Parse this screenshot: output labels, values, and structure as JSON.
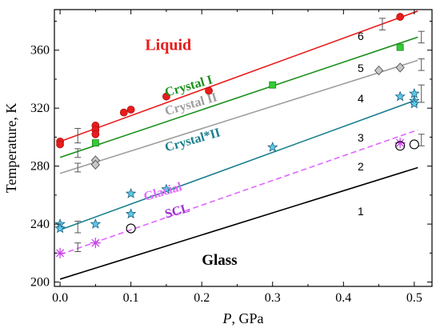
{
  "chart_data": {
    "type": "scatter",
    "xlabel": "P, GPa",
    "xlabel_var": "P",
    "xlabel_unit": ", GPa",
    "ylabel": "Temperature, K",
    "xlim": [
      -0.008,
      0.525
    ],
    "ylim": [
      197,
      388
    ],
    "x_ticks": [
      0.0,
      0.1,
      0.2,
      0.3,
      0.4,
      0.5
    ],
    "x_tick_labels": [
      "0.0",
      "0.1",
      "0.2",
      "0.3",
      "0.4",
      "0.5"
    ],
    "y_ticks": [
      200,
      240,
      280,
      320,
      360
    ],
    "y_tick_labels": [
      "200",
      "240",
      "280",
      "320",
      "360"
    ],
    "grid": false,
    "lines": [
      {
        "label": "1",
        "style": "solid",
        "color": "#000000",
        "x": [
          0.0,
          0.505
        ],
        "y": [
          202,
          279
        ],
        "label_at": [
          0.42,
          246
        ]
      },
      {
        "label": "2",
        "style": "dashed",
        "color": "#e066ff",
        "x": [
          0.0,
          0.505
        ],
        "y": [
          219,
          305
        ],
        "label_at": [
          0.42,
          277
        ]
      },
      {
        "label": "3",
        "style": "solid",
        "color": "#1a7f8f",
        "x": [
          0.0,
          0.505
        ],
        "y": [
          236,
          326
        ],
        "label_at": [
          0.42,
          297
        ]
      },
      {
        "label": "4",
        "style": "solid",
        "color": "#9e9e9e",
        "x": [
          0.0,
          0.505
        ],
        "y": [
          275,
          353
        ],
        "label_at": [
          0.42,
          324
        ]
      },
      {
        "label": "5",
        "style": "solid",
        "color": "#1a8f1a",
        "x": [
          0.0,
          0.505
        ],
        "y": [
          286,
          369
        ],
        "label_at": [
          0.42,
          345
        ]
      },
      {
        "label": "6",
        "style": "solid",
        "color": "#e81c1c",
        "x": [
          0.0,
          0.505
        ],
        "y": [
          297,
          387
        ],
        "label_at": [
          0.42,
          367
        ]
      }
    ],
    "series": [
      {
        "marker": "circle",
        "color": "#e81c1c",
        "stroke": "#b01010",
        "points": [
          [
            0.0,
            297
          ],
          [
            0.0,
            295
          ],
          [
            0.05,
            308
          ],
          [
            0.05,
            305
          ],
          [
            0.05,
            302
          ],
          [
            0.09,
            317
          ],
          [
            0.1,
            319
          ],
          [
            0.15,
            328
          ],
          [
            0.21,
            332
          ],
          [
            0.48,
            383
          ]
        ]
      },
      {
        "marker": "square",
        "color": "#33cc33",
        "stroke": "#1a7f1a",
        "points": [
          [
            0.05,
            296
          ],
          [
            0.3,
            336
          ],
          [
            0.48,
            362
          ]
        ]
      },
      {
        "marker": "diamond",
        "color": "#c8c8c8",
        "stroke": "#555555",
        "points": [
          [
            0.05,
            284
          ],
          [
            0.05,
            281
          ],
          [
            0.45,
            346
          ],
          [
            0.48,
            348
          ]
        ]
      },
      {
        "marker": "star",
        "color": "#5fc8e8",
        "stroke": "#1a5f7f",
        "points": [
          [
            0.0,
            240
          ],
          [
            0.0,
            237
          ],
          [
            0.05,
            240
          ],
          [
            0.1,
            261
          ],
          [
            0.1,
            247
          ],
          [
            0.15,
            264
          ],
          [
            0.3,
            293
          ],
          [
            0.48,
            328
          ],
          [
            0.5,
            330
          ],
          [
            0.5,
            325
          ],
          [
            0.5,
            323
          ]
        ]
      },
      {
        "marker": "asterisk",
        "color": "#cc44ee",
        "stroke": "#cc44ee",
        "points": [
          [
            0.0,
            220
          ],
          [
            0.05,
            227
          ],
          [
            0.48,
            296
          ]
        ]
      },
      {
        "marker": "open-circle",
        "color": "none",
        "stroke": "#000000",
        "points": [
          [
            0.1,
            237
          ],
          [
            0.48,
            294
          ],
          [
            0.5,
            295
          ]
        ]
      }
    ],
    "error_bars": [
      {
        "x": 0.025,
        "y": 301,
        "err": 5
      },
      {
        "x": 0.025,
        "y": 289,
        "err": 3
      },
      {
        "x": 0.025,
        "y": 279,
        "err": 3
      },
      {
        "x": 0.025,
        "y": 238,
        "err": 4
      },
      {
        "x": 0.025,
        "y": 224,
        "err": 3
      },
      {
        "x": 0.455,
        "y": 378,
        "err": 4
      },
      {
        "x": 0.51,
        "y": 369,
        "err": 4
      },
      {
        "x": 0.51,
        "y": 350,
        "err": 4
      },
      {
        "x": 0.51,
        "y": 330,
        "err": 6
      },
      {
        "x": 0.51,
        "y": 298,
        "err": 4
      }
    ],
    "annotations": [
      {
        "text": "Liquid",
        "x": 0.12,
        "y": 360,
        "color": "#e81c1c",
        "size": 20,
        "rotate": 0
      },
      {
        "text": "Crystal I",
        "x": 0.15,
        "y": 328,
        "color": "#1a8f1a",
        "size": 16,
        "rotate": -16
      },
      {
        "text": "Crystal II",
        "x": 0.15,
        "y": 315,
        "color": "#9e9e9e",
        "size": 16,
        "rotate": -16
      },
      {
        "text": "Crystal*II",
        "x": 0.15,
        "y": 290,
        "color": "#1a7f8f",
        "size": 16,
        "rotate": -16
      },
      {
        "text": "Glacial",
        "x": 0.12,
        "y": 256,
        "color": "#e066ff",
        "size": 16,
        "rotate": -16
      },
      {
        "text": "SCL",
        "x": 0.15,
        "y": 244,
        "color": "#9933cc",
        "size": 16,
        "rotate": -16
      },
      {
        "text": "Glass",
        "x": 0.2,
        "y": 212,
        "color": "#000000",
        "size": 19,
        "rotate": 0
      }
    ]
  }
}
